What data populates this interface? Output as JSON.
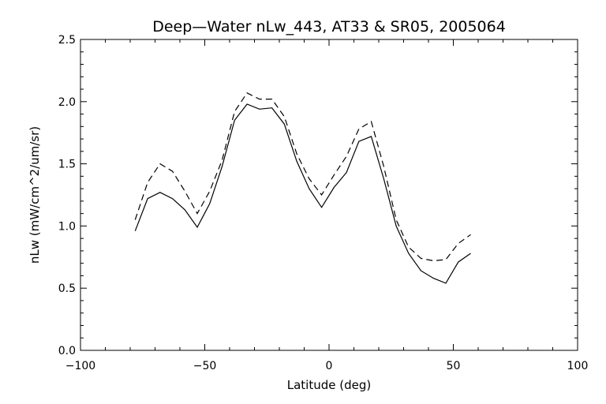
{
  "chart_data": {
    "type": "line",
    "title": "Deep—Water nLw_443, AT33 & SR05, 2005064",
    "xlabel": "Latitude (deg)",
    "ylabel": "nLw (mW/cm^2/um/sr)",
    "xlim": [
      -100,
      100
    ],
    "ylim": [
      0.0,
      2.5
    ],
    "xticks": [
      -100,
      -50,
      0,
      50,
      100
    ],
    "xtick_labels": [
      "−100",
      "−50",
      "0",
      "50",
      "100"
    ],
    "yticks": [
      0.0,
      0.5,
      1.0,
      1.5,
      2.0,
      2.5
    ],
    "ytick_labels": [
      "0.0",
      "0.5",
      "1.0",
      "1.5",
      "2.0",
      "2.5"
    ],
    "grid": false,
    "series": [
      {
        "style": "solid",
        "color": "#000000",
        "x": [
          -78,
          -73,
          -68,
          -63,
          -58,
          -53,
          -48,
          -43,
          -38,
          -33,
          -28,
          -23,
          -18,
          -13,
          -8,
          -3,
          2,
          7,
          12,
          17,
          22,
          27,
          32,
          37,
          42,
          47,
          52,
          57
        ],
        "y": [
          0.96,
          1.22,
          1.27,
          1.22,
          1.13,
          0.99,
          1.18,
          1.48,
          1.85,
          1.98,
          1.94,
          1.95,
          1.82,
          1.52,
          1.3,
          1.15,
          1.31,
          1.43,
          1.68,
          1.72,
          1.38,
          1.0,
          0.78,
          0.64,
          0.58,
          0.54,
          0.71,
          0.78
        ]
      },
      {
        "style": "dashed",
        "color": "#000000",
        "x": [
          -78,
          -73,
          -68,
          -63,
          -58,
          -53,
          -48,
          -43,
          -38,
          -33,
          -28,
          -23,
          -18,
          -13,
          -8,
          -3,
          2,
          7,
          12,
          17,
          22,
          27,
          32,
          37,
          42,
          47,
          52,
          57
        ],
        "y": [
          1.05,
          1.35,
          1.5,
          1.44,
          1.28,
          1.1,
          1.28,
          1.53,
          1.92,
          2.07,
          2.02,
          2.02,
          1.88,
          1.58,
          1.38,
          1.25,
          1.41,
          1.56,
          1.78,
          1.84,
          1.48,
          1.05,
          0.83,
          0.74,
          0.72,
          0.73,
          0.86,
          0.93
        ]
      }
    ]
  }
}
